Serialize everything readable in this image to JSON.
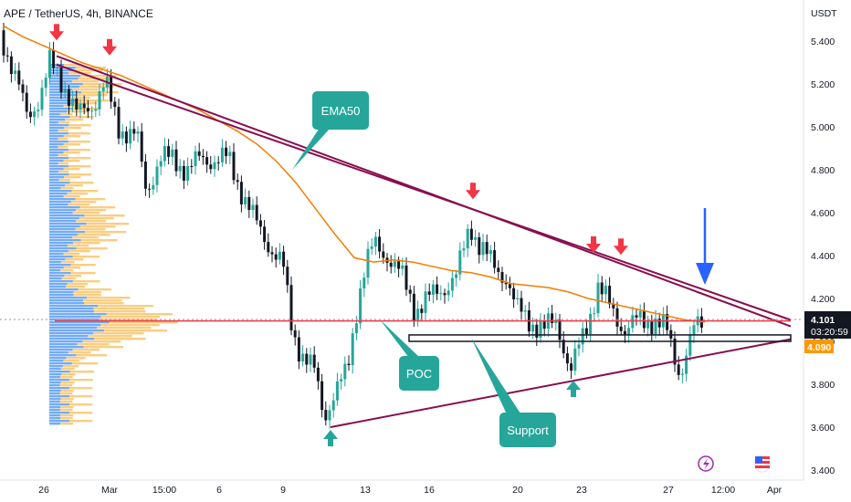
{
  "header": {
    "title": "APE / TetherUS, 4h, BINANCE"
  },
  "chart_data": {
    "type": "candlestick",
    "title": "APE / TetherUS, 4h, BINANCE",
    "yaxis_unit": "USDT",
    "y_ticks": [
      "5.400",
      "5.200",
      "5.000",
      "4.800",
      "4.600",
      "4.400",
      "4.200",
      "4.000",
      "3.800",
      "3.600",
      "3.400"
    ],
    "ylim": [
      3.38,
      5.55
    ],
    "x_ticks": [
      "26",
      "Mar",
      "15:00",
      "6",
      "9",
      "13",
      "16",
      "20",
      "23",
      "27",
      "12:00",
      "Apr"
    ],
    "last_price": "4.101",
    "countdown": "03:20:59",
    "ema_value": "4.090",
    "colors": {
      "up": "#26a69a",
      "down": "#131722",
      "ema": "#f57c00",
      "poc": "#f23645",
      "trendline": "#880e4f",
      "callout": "#26a69a",
      "arrow_down": "#f23645",
      "arrow_up": "#26a69a",
      "big_arrow": "#2962ff",
      "profile_up": "#f9c46b",
      "profile_down": "#5b9cf6"
    },
    "ema50": [
      5.47,
      5.42,
      5.38,
      5.34,
      5.3,
      5.27,
      5.24,
      5.2,
      5.16,
      5.12,
      5.08,
      5.03,
      4.98,
      4.92,
      4.84,
      4.74,
      4.62,
      4.5,
      4.39,
      4.37,
      4.38,
      4.37,
      4.35,
      4.33,
      4.32,
      4.3,
      4.27,
      4.26,
      4.25,
      4.23,
      4.2,
      4.18,
      4.16,
      4.14,
      4.12,
      4.1,
      4.09
    ],
    "annotations": [
      {
        "name": "ema50-callout",
        "text": "EMA50"
      },
      {
        "name": "poc-callout",
        "text": "POC"
      },
      {
        "name": "support-callout",
        "text": "Support"
      }
    ],
    "trendlines": [
      {
        "name": "upper-resistance-outer",
        "from": [
          "Feb 26",
          5.33
        ],
        "to": [
          "Apr",
          4.07
        ]
      },
      {
        "name": "upper-resistance-inner",
        "from": [
          "Feb 26",
          5.29
        ],
        "to": [
          "Apr",
          4.1
        ]
      },
      {
        "name": "rising-support",
        "from": [
          "Mar 10",
          3.6
        ],
        "to": [
          "Apr",
          4.01
        ]
      }
    ],
    "levels": [
      {
        "name": "poc-line",
        "price": 4.095
      },
      {
        "name": "support-zone",
        "price_high": 4.03,
        "price_low": 4.0
      }
    ],
    "markers_down": [
      {
        "x": "Feb 26",
        "price": 5.42
      },
      {
        "x": "Mar 1",
        "price": 5.35
      },
      {
        "x": "Mar 17",
        "price": 4.68
      },
      {
        "x": "Mar 23",
        "price": 4.43
      },
      {
        "x": "Mar 24",
        "price": 4.42
      }
    ],
    "markers_up": [
      {
        "x": "Mar 10",
        "price": 3.57
      },
      {
        "x": "Mar 22",
        "price": 3.8
      }
    ],
    "legend": "none",
    "grid": false
  }
}
